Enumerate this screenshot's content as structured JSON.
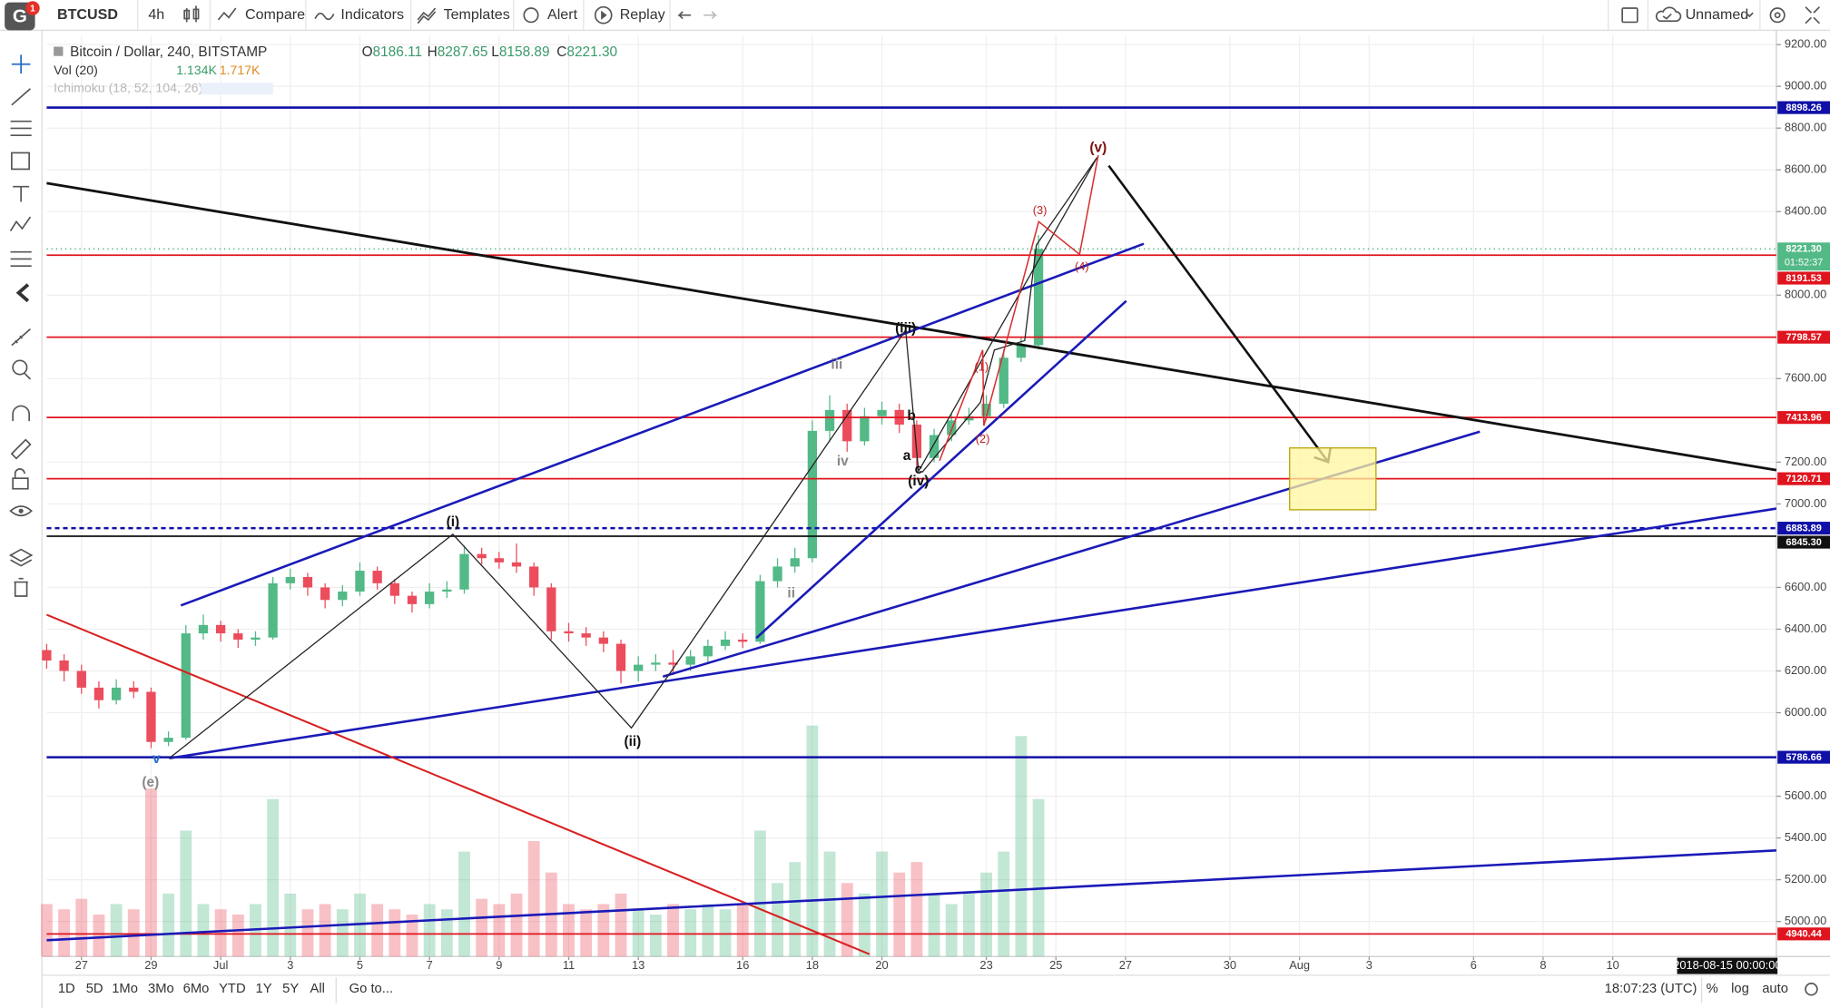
{
  "toolbar": {
    "logo": "G",
    "badge": "1",
    "symbol": "BTCUSD",
    "interval": "4h",
    "compare": "Compare",
    "indicators": "Indicators",
    "templates": "Templates",
    "alert": "Alert",
    "replay": "Replay",
    "layout_name": "Unnamed"
  },
  "legend": {
    "title": "Bitcoin / Dollar, 240, BITSTAMP",
    "ohlc": [
      {
        "key": "O",
        "value": "8186.11"
      },
      {
        "key": "H",
        "value": "8287.65"
      },
      {
        "key": "L",
        "value": "8158.89"
      },
      {
        "key": "C",
        "value": "8221.30"
      }
    ],
    "volume": {
      "name": "Vol (20)",
      "values": [
        "1.134K",
        "1.717K"
      ]
    },
    "ichimoku": "Ichimoku (18, 52, 104, 26)"
  },
  "chart_data": {
    "type": "candlestick",
    "x": [
      -1,
      -0.5,
      0,
      0.5,
      1,
      1.5,
      2,
      2.5,
      3,
      3.5,
      4,
      4.5,
      5,
      5.5,
      6,
      6.5,
      7,
      7.5,
      8,
      8.5,
      9,
      9.5,
      10,
      10.5,
      11,
      11.5,
      12,
      12.5,
      13,
      13.5,
      14,
      14.5,
      15,
      15.5,
      16,
      16.5,
      17,
      17.5,
      18,
      18.5,
      19,
      19.5,
      20,
      20.5,
      21,
      21.5,
      22,
      22.5,
      23,
      23.5,
      24,
      24.5,
      25,
      25.5,
      26,
      26.5,
      27,
      27.5
    ],
    "open": [
      6300,
      6250,
      6200,
      6120,
      6060,
      6120,
      6100,
      5860,
      5880,
      6380,
      6420,
      6380,
      6350,
      6360,
      6620,
      6650,
      6600,
      6540,
      6580,
      6680,
      6620,
      6560,
      6520,
      6580,
      6590,
      6760,
      6740,
      6720,
      6700,
      6600,
      6390,
      6380,
      6360,
      6330,
      6200,
      6230,
      6240,
      6230,
      6270,
      6320,
      6350,
      6340,
      6630,
      6700,
      6740,
      7350,
      7450,
      7300,
      7420,
      7450,
      7380,
      7220,
      7330,
      7400,
      7420,
      7480,
      7700,
      7760
    ],
    "high": [
      6330,
      6280,
      6230,
      6150,
      6160,
      6150,
      6120,
      5910,
      6420,
      6470,
      6440,
      6400,
      6390,
      6650,
      6690,
      6670,
      6620,
      6610,
      6720,
      6700,
      6640,
      6580,
      6620,
      6630,
      6800,
      6790,
      6770,
      6810,
      6720,
      6620,
      6430,
      6410,
      6390,
      6350,
      6270,
      6280,
      6300,
      6300,
      6350,
      6390,
      6380,
      6660,
      6740,
      6790,
      7400,
      7520,
      7480,
      7460,
      7490,
      7480,
      7400,
      7360,
      7430,
      7460,
      7520,
      7740,
      7800,
      8287.65
    ],
    "low": [
      6210,
      6150,
      6090,
      6020,
      6040,
      6070,
      5830,
      5840,
      5870,
      6350,
      6340,
      6310,
      6320,
      6350,
      6590,
      6560,
      6500,
      6510,
      6560,
      6590,
      6520,
      6480,
      6500,
      6550,
      6570,
      6710,
      6690,
      6670,
      6560,
      6350,
      6340,
      6320,
      6290,
      6140,
      6150,
      6200,
      6180,
      6200,
      6240,
      6300,
      6310,
      6330,
      6600,
      6670,
      6720,
      7300,
      7250,
      7280,
      7380,
      7340,
      7160,
      7200,
      7300,
      7380,
      7400,
      7460,
      7680,
      7740
    ],
    "close": [
      6250,
      6200,
      6120,
      6060,
      6120,
      6100,
      5860,
      5880,
      6380,
      6420,
      6380,
      6350,
      6360,
      6620,
      6650,
      6600,
      6540,
      6580,
      6680,
      6620,
      6560,
      6520,
      6580,
      6590,
      6760,
      6740,
      6720,
      6700,
      6600,
      6390,
      6380,
      6360,
      6330,
      6200,
      6230,
      6240,
      6230,
      6270,
      6320,
      6350,
      6340,
      6630,
      6700,
      6740,
      7350,
      7450,
      7300,
      7420,
      7450,
      7380,
      7220,
      7330,
      7400,
      7420,
      7480,
      7700,
      7760,
      8221.3
    ],
    "volume": [
      0.5,
      0.45,
      0.55,
      0.4,
      0.5,
      0.45,
      1.6,
      0.6,
      1.2,
      0.5,
      0.45,
      0.4,
      0.5,
      1.5,
      0.6,
      0.45,
      0.5,
      0.45,
      0.6,
      0.5,
      0.45,
      0.4,
      0.5,
      0.45,
      1.0,
      0.55,
      0.5,
      0.6,
      1.1,
      0.8,
      0.5,
      0.45,
      0.5,
      0.6,
      0.45,
      0.4,
      0.5,
      0.45,
      0.5,
      0.45,
      0.5,
      1.2,
      0.7,
      0.9,
      2.2,
      1.0,
      0.7,
      0.6,
      1.0,
      0.8,
      0.9,
      0.6,
      0.5,
      0.6,
      0.8,
      1.0,
      2.1,
      1.5
    ],
    "up_color": "#53b987",
    "down_color": "#eb4d5c",
    "xlim": [
      -1,
      48.7
    ],
    "ylim": [
      4832,
      9246
    ],
    "xticks": [
      {
        "value": 0,
        "label": "27"
      },
      {
        "value": 2,
        "label": "29"
      },
      {
        "value": 4,
        "label": "Jul"
      },
      {
        "value": 6,
        "label": "3"
      },
      {
        "value": 8,
        "label": "5"
      },
      {
        "value": 10,
        "label": "7"
      },
      {
        "value": 12,
        "label": "9"
      },
      {
        "value": 14,
        "label": "11"
      },
      {
        "value": 16,
        "label": "13"
      },
      {
        "value": 19,
        "label": "16"
      },
      {
        "value": 21,
        "label": "18"
      },
      {
        "value": 23,
        "label": "20"
      },
      {
        "value": 26,
        "label": "23"
      },
      {
        "value": 28,
        "label": "25"
      },
      {
        "value": 30,
        "label": "27"
      },
      {
        "value": 33,
        "label": "30"
      },
      {
        "value": 35,
        "label": "Aug"
      },
      {
        "value": 37,
        "label": "3"
      },
      {
        "value": 40,
        "label": "6"
      },
      {
        "value": 42,
        "label": "8"
      },
      {
        "value": 44,
        "label": "10"
      }
    ],
    "yticks": [
      {
        "value": 9200,
        "label": "9200.00"
      },
      {
        "value": 9000,
        "label": "9000.00"
      },
      {
        "value": 8800,
        "label": "8800.00"
      },
      {
        "value": 8600,
        "label": "8600.00"
      },
      {
        "value": 8400,
        "label": "8400.00"
      },
      {
        "value": 8000,
        "label": "8000.00"
      },
      {
        "value": 7600,
        "label": "7600.00"
      },
      {
        "value": 7200,
        "label": "7200.00"
      },
      {
        "value": 7000,
        "label": "7000.00"
      },
      {
        "value": 6600,
        "label": "6600.00"
      },
      {
        "value": 6400,
        "label": "6400.00"
      },
      {
        "value": 6200,
        "label": "6200.00"
      },
      {
        "value": 6000,
        "label": "6000.00"
      },
      {
        "value": 5600,
        "label": "5600.00"
      },
      {
        "value": 5400,
        "label": "5400.00"
      },
      {
        "value": 5200,
        "label": "5200.00"
      },
      {
        "value": 5000,
        "label": "5000.00"
      }
    ],
    "grid": true,
    "price_lines": [
      {
        "value": 8898.26,
        "color": "#1010a8"
      },
      {
        "value": 8221.3,
        "label": "8221.30",
        "color": "#53b987",
        "style": "dotted"
      },
      {
        "value": 8191.53,
        "color": "#e0141e"
      },
      {
        "value": 7798.57,
        "color": "#e0141e"
      },
      {
        "value": 7413.96,
        "color": "#e0141e"
      },
      {
        "value": 7120.71,
        "color": "#e0141e"
      },
      {
        "value": 6883.89,
        "color": "#1010a8",
        "style": "dashed"
      },
      {
        "value": 6845.3,
        "label": "6845.30",
        "color": "#111111"
      },
      {
        "value": 5786.66,
        "color": "#1010a8"
      },
      {
        "value": 4940.44,
        "color": "#e0141e"
      }
    ],
    "countdown": "01:52:37",
    "crosshair_date": "2018-08-15 00:00:00"
  },
  "annotations": [
    "(e)",
    "v",
    "(i)",
    "(ii)",
    "(iii)",
    "(iv)",
    "(v)",
    "ii",
    "iii",
    "iv",
    "a",
    "b",
    "c",
    "(1)",
    "(2)",
    "(3)",
    "(4)"
  ],
  "bottom_bar": {
    "ranges": [
      "1D",
      "5D",
      "1Mo",
      "3Mo",
      "6Mo",
      "YTD",
      "1Y",
      "5Y",
      "All"
    ],
    "goto": "Go to...",
    "clock": "18:07:23 (UTC)",
    "percent": "%",
    "log": "log",
    "auto": "auto"
  }
}
